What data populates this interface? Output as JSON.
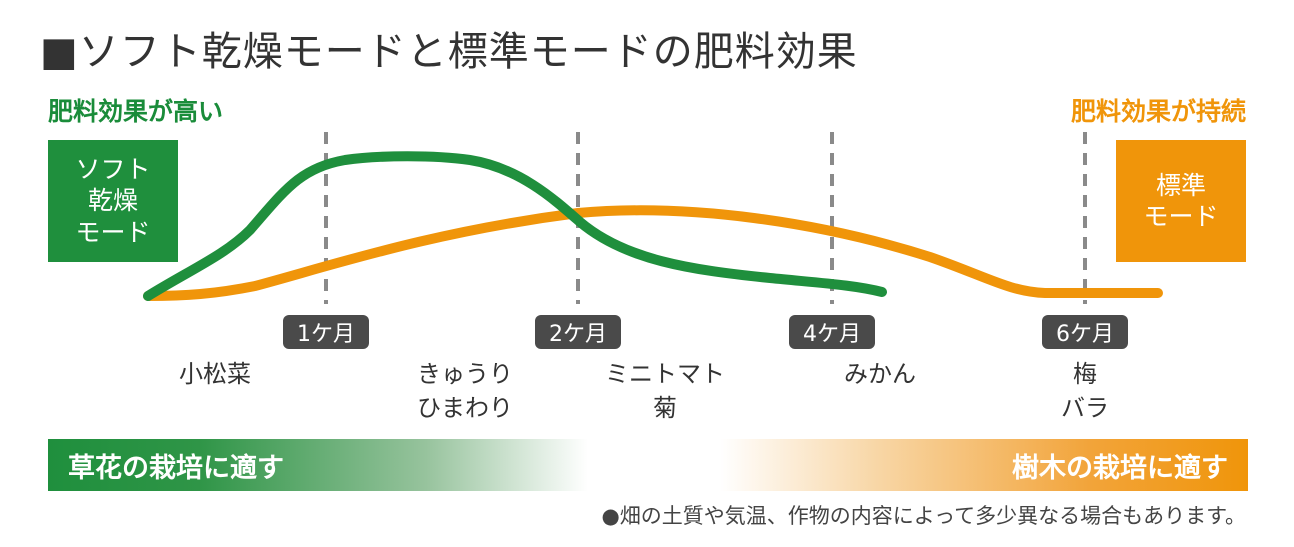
{
  "title": "■ソフト乾燥モードと標準モードの肥料効果",
  "labels": {
    "left": "肥料効果が高い",
    "right": "肥料効果が持続"
  },
  "modes": {
    "soft": [
      "ソフト",
      "乾燥",
      "モード"
    ],
    "standard": [
      "標準",
      "モード"
    ]
  },
  "months": [
    "1ケ月",
    "2ケ月",
    "4ケ月",
    "6ケ月"
  ],
  "crops": [
    [
      "小松菜"
    ],
    [
      "きゅうり",
      "ひまわり"
    ],
    [
      "ミニトマト",
      "菊"
    ],
    [
      "みかん"
    ],
    [
      "梅",
      "バラ"
    ]
  ],
  "bands": {
    "left": "草花の栽培に適す",
    "right": "樹木の栽培に適す"
  },
  "note": "●畑の土質や気温、作物の内容によって多少異なる場合もあります。",
  "colors": {
    "soft_curve": "#1f8f3d",
    "standard_curve": "#f0950a",
    "divider": "#8a8a8a"
  }
}
